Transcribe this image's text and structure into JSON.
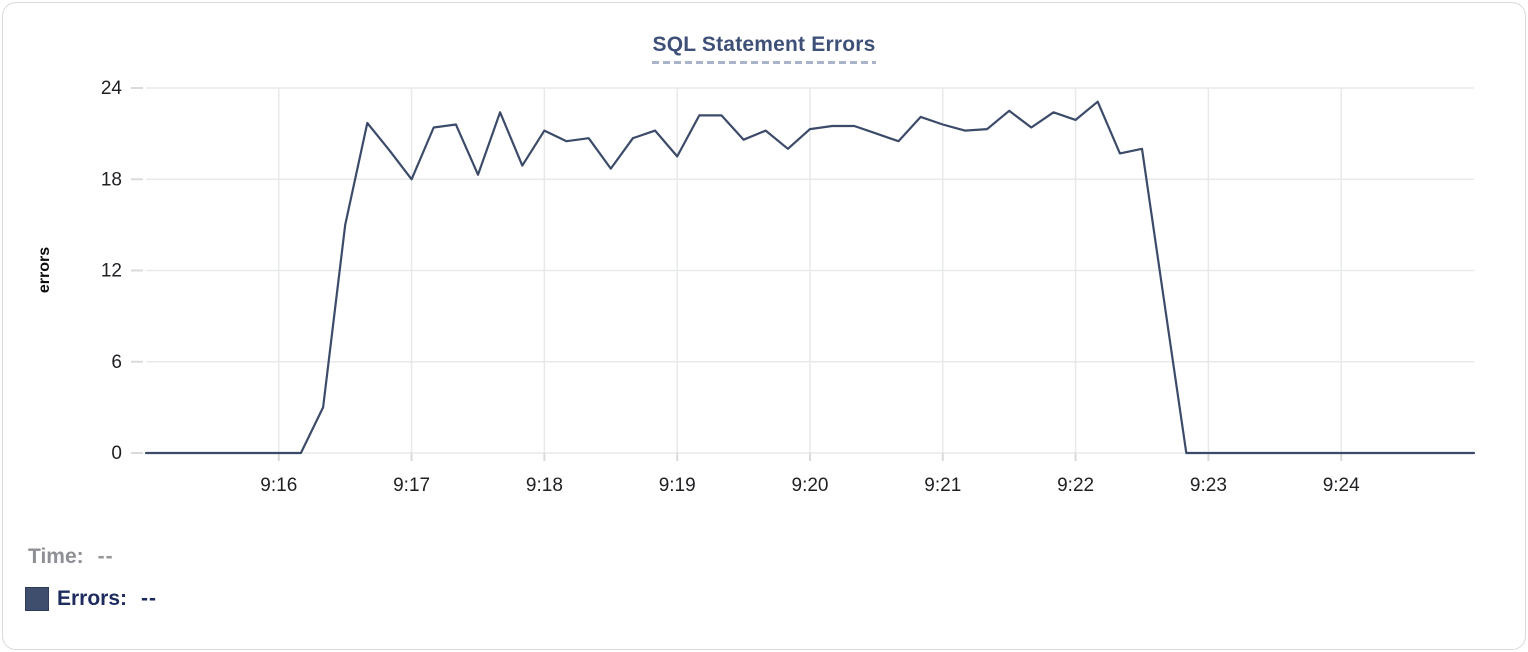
{
  "card": {
    "background": "#ffffff",
    "border_color": "#d7dade"
  },
  "chart_data": {
    "type": "line",
    "title": "SQL Statement Errors",
    "xlabel": "",
    "ylabel": "errors",
    "ylim": [
      0,
      24
    ],
    "y_ticks": [
      0,
      6,
      12,
      18,
      24
    ],
    "x_tick_labels": [
      "9:16",
      "9:17",
      "9:18",
      "9:19",
      "9:20",
      "9:21",
      "9:22",
      "9:23",
      "9:24"
    ],
    "x_range": [
      "9:15:00",
      "9:25:00"
    ],
    "interval_seconds": 10,
    "grid": true,
    "legend_position": "bottom-left",
    "line_color": "#3c4b69",
    "x": [
      "9:15:00",
      "9:15:10",
      "9:15:20",
      "9:15:30",
      "9:15:40",
      "9:15:50",
      "9:16:00",
      "9:16:10",
      "9:16:20",
      "9:16:30",
      "9:16:40",
      "9:16:50",
      "9:17:00",
      "9:17:10",
      "9:17:20",
      "9:17:30",
      "9:17:40",
      "9:17:50",
      "9:18:00",
      "9:18:10",
      "9:18:20",
      "9:18:30",
      "9:18:40",
      "9:18:50",
      "9:19:00",
      "9:19:10",
      "9:19:20",
      "9:19:30",
      "9:19:40",
      "9:19:50",
      "9:20:00",
      "9:20:10",
      "9:20:20",
      "9:20:30",
      "9:20:40",
      "9:20:50",
      "9:21:00",
      "9:21:10",
      "9:21:20",
      "9:21:30",
      "9:21:40",
      "9:21:50",
      "9:22:00",
      "9:22:10",
      "9:22:20",
      "9:22:30",
      "9:22:40",
      "9:22:50",
      "9:23:00",
      "9:23:10",
      "9:23:20",
      "9:23:30",
      "9:23:40",
      "9:23:50",
      "9:24:00",
      "9:24:10",
      "9:24:20",
      "9:24:30",
      "9:24:40",
      "9:24:50",
      "9:25:00"
    ],
    "values": [
      0,
      0,
      0,
      0,
      0,
      0,
      0,
      0,
      3,
      15,
      21.7,
      19.9,
      18,
      21.4,
      21.6,
      18.3,
      22.4,
      18.9,
      21.2,
      20.5,
      20.7,
      18.7,
      20.7,
      21.2,
      19.5,
      22.2,
      22.2,
      20.6,
      21.2,
      20,
      21.3,
      21.5,
      21.5,
      21,
      20.5,
      22.1,
      21.6,
      21.2,
      21.3,
      22.5,
      21.4,
      22.4,
      21.9,
      23.1,
      19.7,
      20,
      10,
      0,
      0,
      0,
      0,
      0,
      0,
      0,
      0,
      0,
      0,
      0,
      0,
      0,
      0
    ]
  },
  "legend": {
    "time_label": "Time:",
    "time_value": "--",
    "errors_label": "Errors:",
    "errors_value": "--",
    "swatch_color": "#3f4e6c"
  },
  "colors": {
    "title": "#3f5078",
    "title_underline": "#a9b3c9",
    "grid": "#e8e9eb",
    "tick": "#d9dadc",
    "tick_label": "#1f2023",
    "time_text": "#8e9095",
    "errors_text": "#1d2b5e",
    "line": "#3c4b69"
  }
}
